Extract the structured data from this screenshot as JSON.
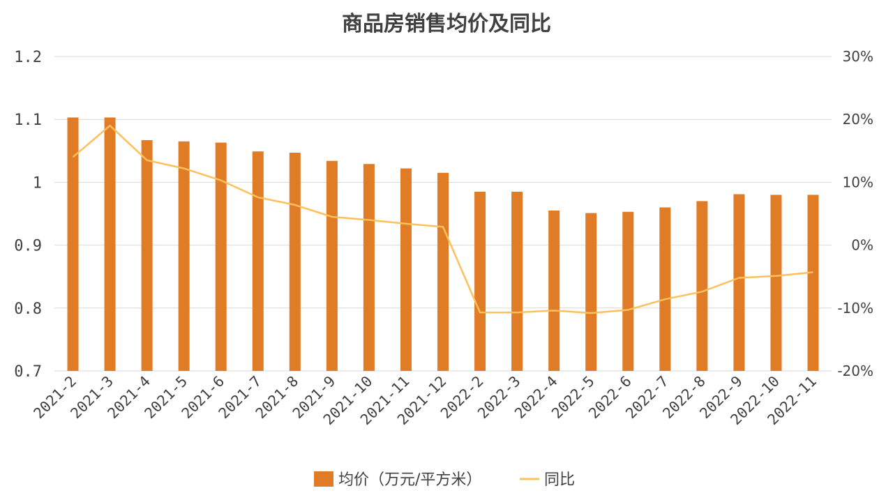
{
  "chart_data": {
    "type": "bar",
    "title": "商品房销售均价及同比",
    "categories": [
      "2021-2",
      "2021-3",
      "2021-4",
      "2021-5",
      "2021-6",
      "2021-7",
      "2021-8",
      "2021-9",
      "2021-10",
      "2021-11",
      "2021-12",
      "2022-2",
      "2022-3",
      "2022-4",
      "2022-5",
      "2022-6",
      "2022-7",
      "2022-8",
      "2022-9",
      "2022-10",
      "2022-11"
    ],
    "series": [
      {
        "name": "均价（万元/平方米）",
        "type": "bar",
        "axis": "left",
        "color": "#E07B26",
        "values": [
          1.103,
          1.103,
          1.067,
          1.065,
          1.063,
          1.049,
          1.047,
          1.034,
          1.029,
          1.022,
          1.015,
          0.985,
          0.985,
          0.955,
          0.951,
          0.953,
          0.96,
          0.97,
          0.981,
          0.98,
          0.98
        ]
      },
      {
        "name": "同比",
        "type": "line",
        "axis": "right",
        "color": "#FFC05C",
        "values": [
          14.0,
          19.0,
          13.5,
          12.2,
          10.3,
          7.6,
          6.4,
          4.5,
          4.0,
          3.4,
          2.9,
          -10.7,
          -10.7,
          -10.4,
          -10.8,
          -10.3,
          -8.6,
          -7.4,
          -5.2,
          -4.9,
          -4.3
        ]
      }
    ],
    "y_left": {
      "min": 0.7,
      "max": 1.2,
      "ticks": [
        "0.7",
        "0.8",
        "0.9",
        "1",
        "1.1",
        "1.2"
      ],
      "tick_values": [
        0.7,
        0.8,
        0.9,
        1.0,
        1.1,
        1.2
      ]
    },
    "y_right": {
      "min": -20,
      "max": 30,
      "ticks": [
        "-20%",
        "-10%",
        "0%",
        "10%",
        "20%",
        "30%"
      ],
      "tick_values": [
        -20,
        -10,
        0,
        10,
        20,
        30
      ]
    },
    "grid": true,
    "legend": "bottom"
  }
}
